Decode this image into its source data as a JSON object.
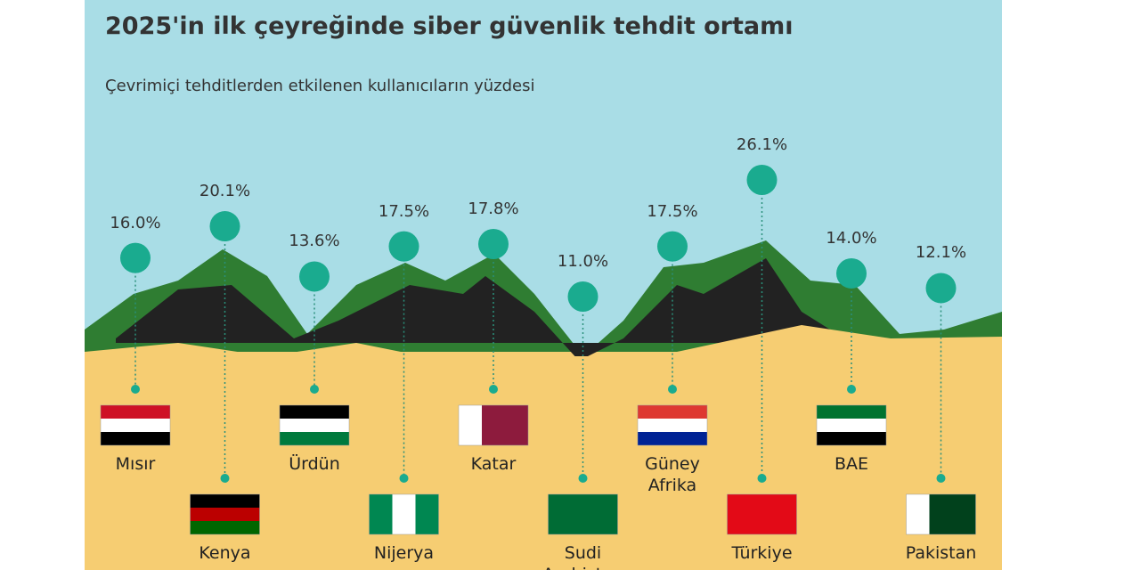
{
  "chart_data": {
    "type": "dot",
    "title": "2025'in ilk çeyreğinde siber güvenlik tehdit ortamı",
    "subtitle": "Çevrimiçi tehditlerden etkilenen kullanıcıların yüzdesi",
    "categories": [
      "Mısır",
      "Kenya",
      "Ürdün",
      "Nijerya",
      "Katar",
      "Sudi Arabistan",
      "Güney Afrika",
      "Türkiye",
      "BAE",
      "Pakistan"
    ],
    "values": [
      16.0,
      20.1,
      13.6,
      17.5,
      17.8,
      11.0,
      17.5,
      26.1,
      14.0,
      12.1
    ],
    "value_labels": [
      "16.0%",
      "20.1%",
      "13.6%",
      "17.5%",
      "17.8%",
      "11.0%",
      "17.5%",
      "26.1%",
      "14.0%",
      "12.1%"
    ],
    "color": "#1aab8f"
  }
}
